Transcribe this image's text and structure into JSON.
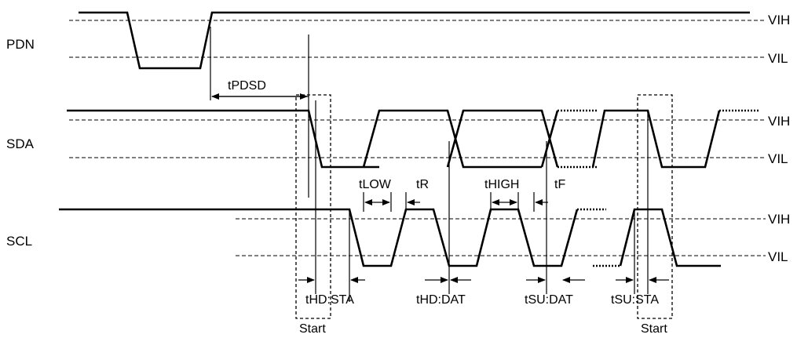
{
  "signals": {
    "pdn": "PDN",
    "sda": "SDA",
    "scl": "SCL"
  },
  "levels": {
    "vih": "VIH",
    "vil": "VIL"
  },
  "timing": {
    "tpdsd": "tPDSD",
    "tlow": "tLOW",
    "tr": "tR",
    "thigh": "tHIGH",
    "tf": "tF",
    "thd_sta": "tHD:STA",
    "thd_dat": "tHD:DAT",
    "tsu_dat": "tSU:DAT",
    "tsu_sta": "tSU:STA"
  },
  "conditions": {
    "start1": "Start",
    "start2": "Start"
  }
}
